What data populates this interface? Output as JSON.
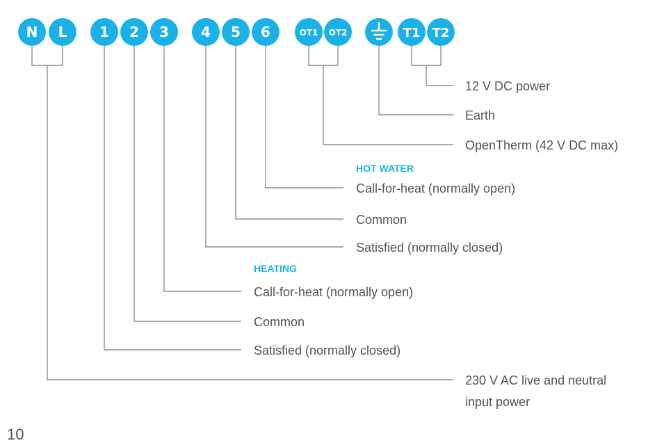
{
  "terminals": {
    "n": "N",
    "l": "L",
    "t1": "1",
    "t2": "2",
    "t3": "3",
    "t4": "4",
    "t5": "5",
    "t6": "6",
    "ot1": "OT1",
    "ot2": "OT2",
    "earth_icon": "earth-ground-icon",
    "tt1": "T1",
    "tt2": "T2"
  },
  "labels": {
    "dc_power": "12 V DC power",
    "earth": "Earth",
    "opentherm": "OpenTherm (42 V DC max)",
    "hot_water_heading": "HOT WATER",
    "hw_call": "Call-for-heat (normally open)",
    "hw_common": "Common",
    "hw_satisfied": "Satisfied (normally closed)",
    "heating_heading": "HEATING",
    "h_call": "Call-for-heat (normally open)",
    "h_common": "Common",
    "h_satisfied": "Satisfied (normally closed)",
    "ac_power_line1": "230 V AC live and neutral",
    "ac_power_line2": "input power"
  },
  "page_number": "10",
  "colors": {
    "accent": "#1bb1e6",
    "line": "#8a8f94",
    "text": "#4f5458"
  }
}
